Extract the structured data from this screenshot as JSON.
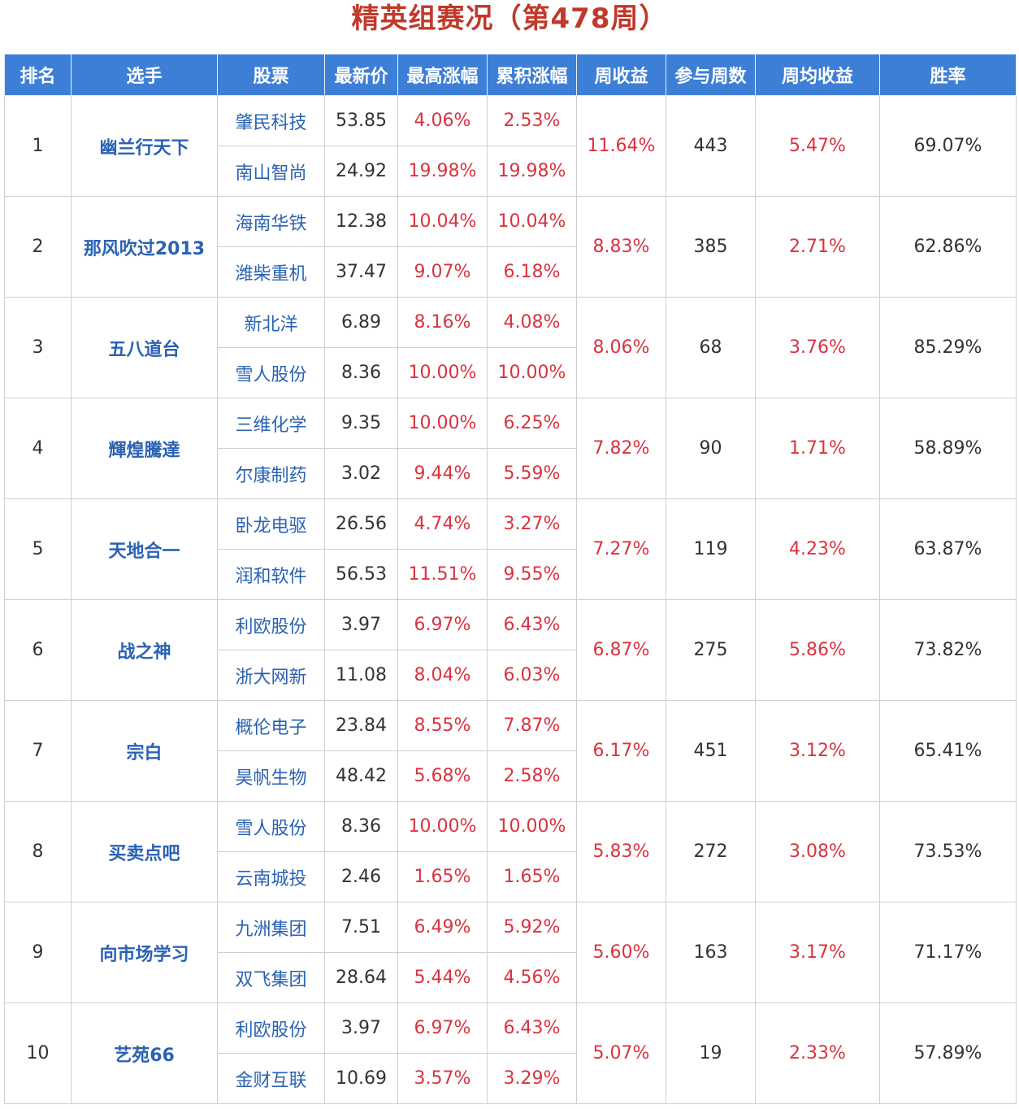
{
  "title": "精英组赛况（第478周）",
  "headers": [
    "排名",
    "选手",
    "股票",
    "最新价",
    "最高涨幅",
    "累积涨幅",
    "周收益",
    "参与周数",
    "周均收益",
    "胜率"
  ],
  "rows": [
    {
      "rank": "1",
      "player": "幽兰行天下",
      "weekly_return": "11.64%",
      "weeks": "443",
      "avg_return": "5.47%",
      "win_rate": "69.07%",
      "stocks": [
        {
          "name": "肇民科技",
          "price": "53.85",
          "max_gain": "4.06%",
          "cum_gain": "2.53%"
        },
        {
          "name": "南山智尚",
          "price": "24.92",
          "max_gain": "19.98%",
          "cum_gain": "19.98%"
        }
      ]
    },
    {
      "rank": "2",
      "player": "那风吹过2013",
      "weekly_return": "8.83%",
      "weeks": "385",
      "avg_return": "2.71%",
      "win_rate": "62.86%",
      "stocks": [
        {
          "name": "海南华铁",
          "price": "12.38",
          "max_gain": "10.04%",
          "cum_gain": "10.04%"
        },
        {
          "name": "潍柴重机",
          "price": "37.47",
          "max_gain": "9.07%",
          "cum_gain": "6.18%"
        }
      ]
    },
    {
      "rank": "3",
      "player": "五八道台",
      "weekly_return": "8.06%",
      "weeks": "68",
      "avg_return": "3.76%",
      "win_rate": "85.29%",
      "stocks": [
        {
          "name": "新北洋",
          "price": "6.89",
          "max_gain": "8.16%",
          "cum_gain": "4.08%"
        },
        {
          "name": "雪人股份",
          "price": "8.36",
          "max_gain": "10.00%",
          "cum_gain": "10.00%"
        }
      ]
    },
    {
      "rank": "4",
      "player": "輝煌騰達",
      "weekly_return": "7.82%",
      "weeks": "90",
      "avg_return": "1.71%",
      "win_rate": "58.89%",
      "stocks": [
        {
          "name": "三维化学",
          "price": "9.35",
          "max_gain": "10.00%",
          "cum_gain": "6.25%"
        },
        {
          "name": "尔康制药",
          "price": "3.02",
          "max_gain": "9.44%",
          "cum_gain": "5.59%"
        }
      ]
    },
    {
      "rank": "5",
      "player": "天地合一",
      "weekly_return": "7.27%",
      "weeks": "119",
      "avg_return": "4.23%",
      "win_rate": "63.87%",
      "stocks": [
        {
          "name": "卧龙电驱",
          "price": "26.56",
          "max_gain": "4.74%",
          "cum_gain": "3.27%"
        },
        {
          "name": "润和软件",
          "price": "56.53",
          "max_gain": "11.51%",
          "cum_gain": "9.55%"
        }
      ]
    },
    {
      "rank": "6",
      "player": "战之神",
      "weekly_return": "6.87%",
      "weeks": "275",
      "avg_return": "5.86%",
      "win_rate": "73.82%",
      "stocks": [
        {
          "name": "利欧股份",
          "price": "3.97",
          "max_gain": "6.97%",
          "cum_gain": "6.43%"
        },
        {
          "name": "浙大网新",
          "price": "11.08",
          "max_gain": "8.04%",
          "cum_gain": "6.03%"
        }
      ]
    },
    {
      "rank": "7",
      "player": "宗白",
      "weekly_return": "6.17%",
      "weeks": "451",
      "avg_return": "3.12%",
      "win_rate": "65.41%",
      "stocks": [
        {
          "name": "概伦电子",
          "price": "23.84",
          "max_gain": "8.55%",
          "cum_gain": "7.87%"
        },
        {
          "name": "昊帆生物",
          "price": "48.42",
          "max_gain": "5.68%",
          "cum_gain": "2.58%"
        }
      ]
    },
    {
      "rank": "8",
      "player": "买卖点吧",
      "weekly_return": "5.83%",
      "weeks": "272",
      "avg_return": "3.08%",
      "win_rate": "73.53%",
      "stocks": [
        {
          "name": "雪人股份",
          "price": "8.36",
          "max_gain": "10.00%",
          "cum_gain": "10.00%"
        },
        {
          "name": "云南城投",
          "price": "2.46",
          "max_gain": "1.65%",
          "cum_gain": "1.65%"
        }
      ]
    },
    {
      "rank": "9",
      "player": "向市场学习",
      "weekly_return": "5.60%",
      "weeks": "163",
      "avg_return": "3.17%",
      "win_rate": "71.17%",
      "stocks": [
        {
          "name": "九洲集团",
          "price": "7.51",
          "max_gain": "6.49%",
          "cum_gain": "5.92%"
        },
        {
          "name": "双飞集团",
          "price": "28.64",
          "max_gain": "5.44%",
          "cum_gain": "4.56%"
        }
      ]
    },
    {
      "rank": "10",
      "player": "艺苑66",
      "weekly_return": "5.07%",
      "weeks": "19",
      "avg_return": "2.33%",
      "win_rate": "57.89%",
      "stocks": [
        {
          "name": "利欧股份",
          "price": "3.97",
          "max_gain": "6.97%",
          "cum_gain": "6.43%"
        },
        {
          "name": "金财互联",
          "price": "10.69",
          "max_gain": "3.57%",
          "cum_gain": "3.29%"
        }
      ]
    }
  ]
}
